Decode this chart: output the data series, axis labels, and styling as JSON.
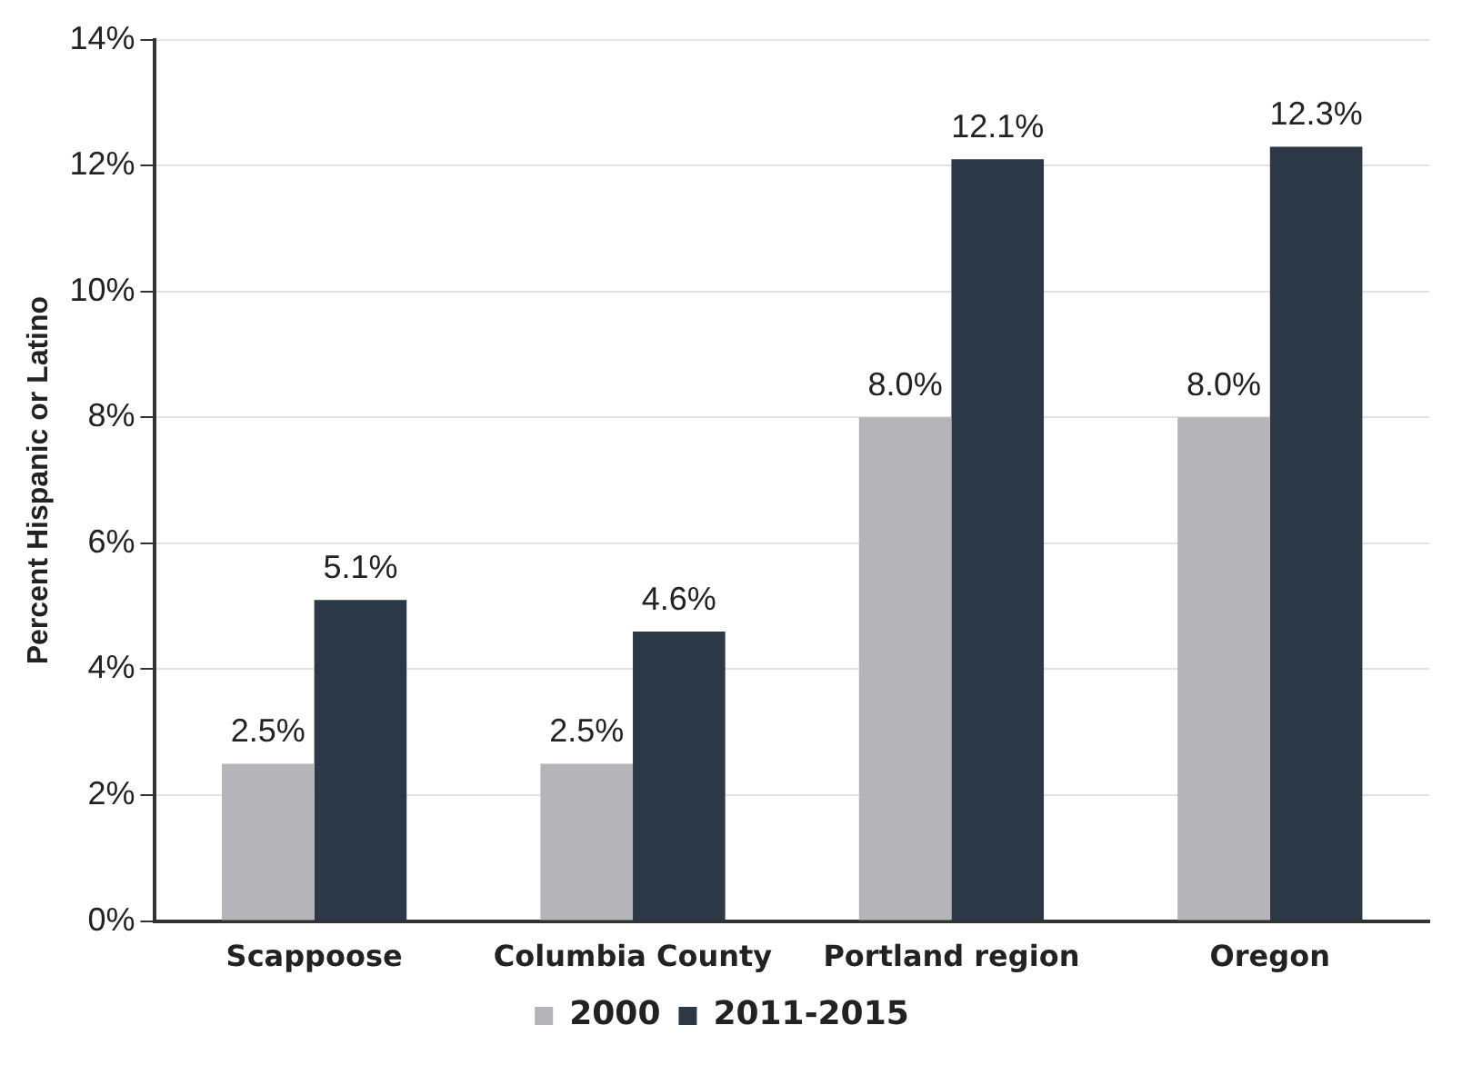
{
  "chart_data": {
    "type": "bar",
    "ylabel": "Percent Hispanic or Latino",
    "categories": [
      "Scappoose",
      "Columbia County",
      "Portland region",
      "Oregon"
    ],
    "series": [
      {
        "name": "2000",
        "color": "#b4b4b9",
        "values": [
          2.5,
          2.5,
          8.0,
          8.0
        ],
        "value_labels": [
          "2.5%",
          "2.5%",
          "8.0%",
          "8.0%"
        ]
      },
      {
        "name": "2011-2015",
        "color": "#2b3946",
        "values": [
          5.1,
          4.6,
          12.1,
          12.3
        ],
        "value_labels": [
          "5.1%",
          "4.6%",
          "12.1%",
          "12.3%"
        ]
      }
    ],
    "ylim": [
      0,
      14
    ],
    "yticks": [
      {
        "value": 0,
        "label": "0%"
      },
      {
        "value": 2,
        "label": "2%"
      },
      {
        "value": 4,
        "label": "4%"
      },
      {
        "value": 6,
        "label": "6%"
      },
      {
        "value": 8,
        "label": "8%"
      },
      {
        "value": 10,
        "label": "10%"
      },
      {
        "value": 12,
        "label": "12%"
      },
      {
        "value": 14,
        "label": "14%"
      }
    ],
    "grid": "y",
    "legend": "bottom"
  }
}
